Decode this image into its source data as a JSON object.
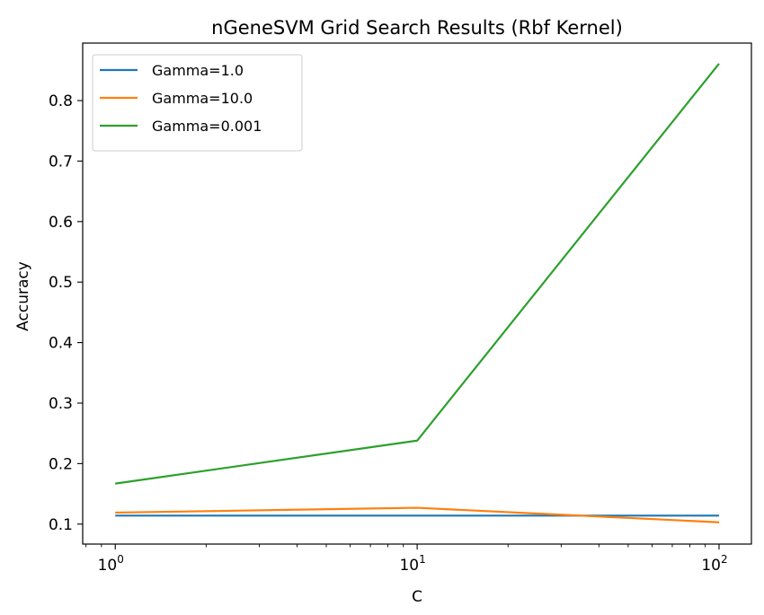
{
  "chart_data": {
    "type": "line",
    "title": "nGeneSVM Grid Search Results (Rbf Kernel)",
    "xlabel": "C",
    "ylabel": "Accuracy",
    "xscale": "log",
    "x": [
      1,
      10,
      100
    ],
    "xlim": [
      0.78,
      128
    ],
    "ylim": [
      0.067,
      0.895
    ],
    "x_ticks": [
      {
        "value": 1,
        "base": "10",
        "exp": "0"
      },
      {
        "value": 10,
        "base": "10",
        "exp": "1"
      },
      {
        "value": 100,
        "base": "10",
        "exp": "2"
      }
    ],
    "y_ticks": [
      {
        "value": 0.1,
        "label": "0.1"
      },
      {
        "value": 0.2,
        "label": "0.2"
      },
      {
        "value": 0.3,
        "label": "0.3"
      },
      {
        "value": 0.4,
        "label": "0.4"
      },
      {
        "value": 0.5,
        "label": "0.5"
      },
      {
        "value": 0.6,
        "label": "0.6"
      },
      {
        "value": 0.7,
        "label": "0.7"
      },
      {
        "value": 0.8,
        "label": "0.8"
      }
    ],
    "series": [
      {
        "name": "Gamma=1.0",
        "color": "#1f77b4",
        "values": [
          0.114,
          0.114,
          0.114
        ]
      },
      {
        "name": "Gamma=10.0",
        "color": "#ff7f0e",
        "values": [
          0.119,
          0.127,
          0.103
        ]
      },
      {
        "name": "Gamma=0.001",
        "color": "#2ca02c",
        "values": [
          0.167,
          0.238,
          0.861
        ]
      }
    ],
    "legend": "top-left",
    "grid": false
  }
}
